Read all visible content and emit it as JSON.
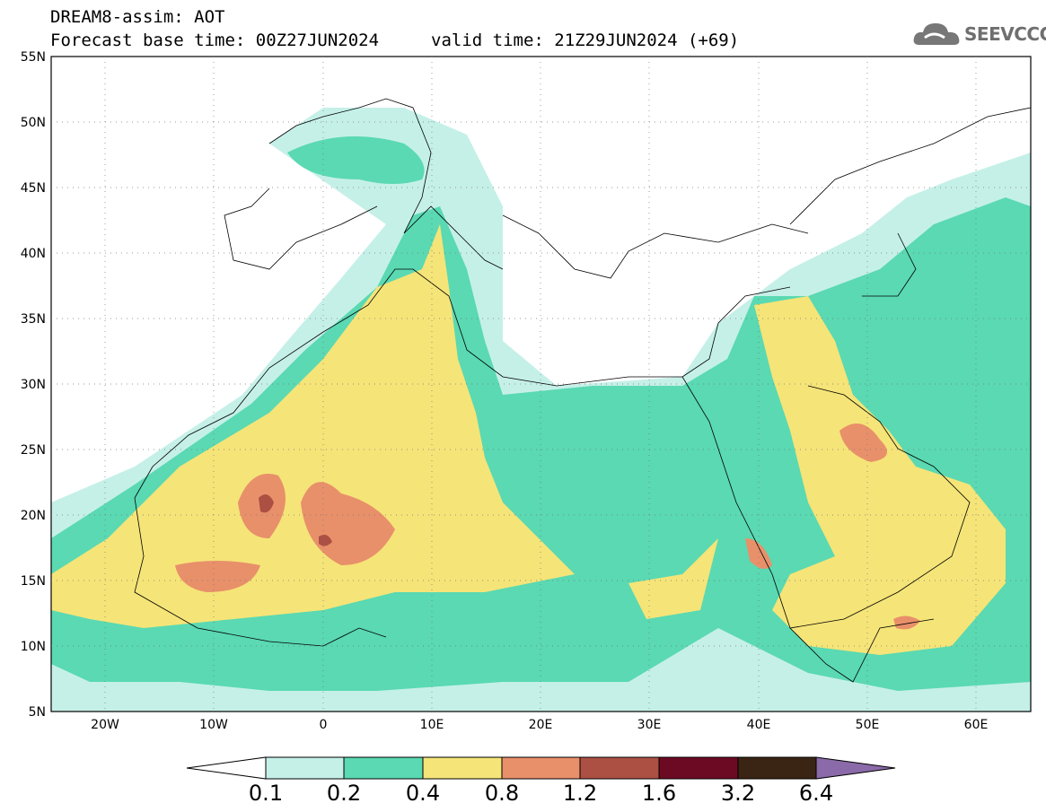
{
  "header": {
    "title": "DREAM8-assim: AOT",
    "base_time": "Forecast base time: 00Z27JUN2024",
    "valid_time": "valid time: 21Z29JUN2024 (+69)"
  },
  "logo": {
    "text": "SEEVCCC",
    "icon": "cloud-icon"
  },
  "map": {
    "lat_labels": [
      "55N",
      "50N",
      "45N",
      "40N",
      "35N",
      "30N",
      "25N",
      "20N",
      "15N",
      "10N",
      "5N"
    ],
    "lon_labels": [
      "20W",
      "10W",
      "0",
      "10E",
      "20E",
      "30E",
      "40E",
      "50E",
      "60E"
    ],
    "lat_range": [
      5,
      55
    ],
    "lon_range": [
      -25,
      65
    ]
  },
  "legend": {
    "levels": [
      "0.1",
      "0.2",
      "0.4",
      "0.8",
      "1.2",
      "1.6",
      "3.2",
      "6.4"
    ],
    "colors": [
      "#c5f0e8",
      "#5ad9b2",
      "#f5e478",
      "#e8906a",
      "#ac5043",
      "#6c0a23",
      "#3a2514"
    ],
    "over_color": "#8a6aa8",
    "under_color": "#ffffff"
  }
}
